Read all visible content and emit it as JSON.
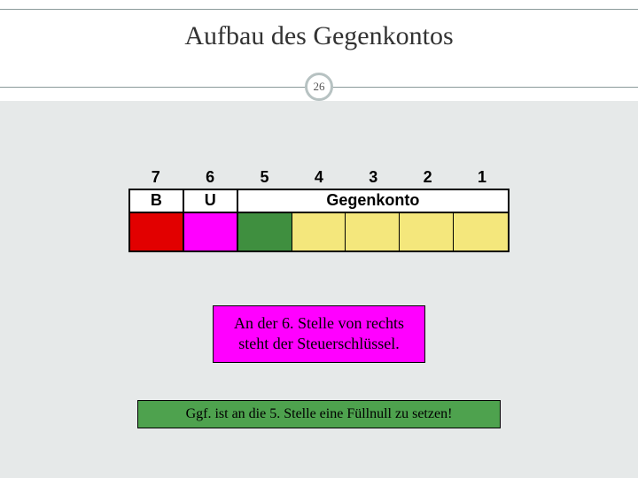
{
  "title": "Aufbau des Gegenkontos",
  "slide_number": "26",
  "colors": {
    "slide_bg": "#ffffff",
    "gray_bg": "#e6e9e9",
    "rule": "#8a9a9a",
    "badge_border": "#b7c2c2",
    "magenta": "#ff00ff",
    "green_callout": "#4ea24e"
  },
  "table": {
    "numbers": [
      "7",
      "6",
      "5",
      "4",
      "3",
      "2",
      "1"
    ],
    "labels": {
      "b": "B",
      "u": "U",
      "g": "Gegenkonto"
    },
    "cell_colors": [
      "#e20000",
      "#ff00ff",
      "#3f8f3f",
      "#f4e77c",
      "#f4e77c",
      "#f4e77c",
      "#f4e77c"
    ]
  },
  "callout_magenta": "An der 6. Stelle von rechts steht der Steuerschlüssel.",
  "callout_green": "Ggf. ist an die 5. Stelle eine Füllnull zu setzen!"
}
